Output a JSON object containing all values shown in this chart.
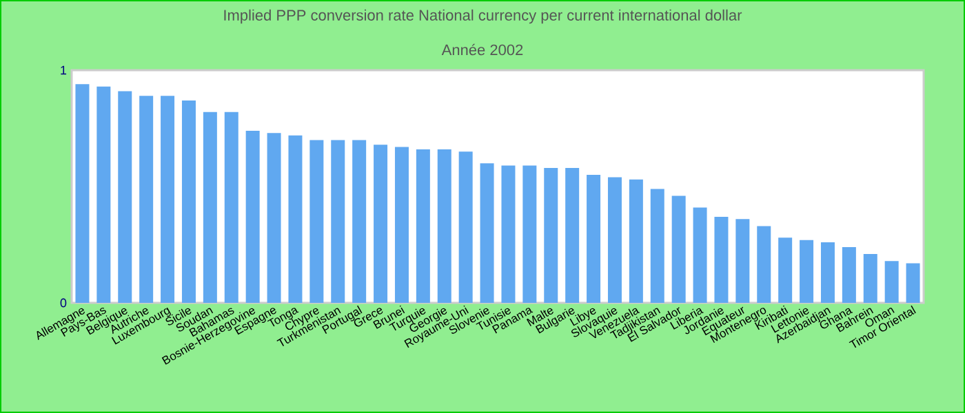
{
  "chart_data": {
    "type": "bar",
    "title": "Implied PPP conversion rate  National currency per current international dollar",
    "subtitle": "Année 2002",
    "categories": [
      "Allemagne",
      "Pays-Bas",
      "Belgique",
      "Autriche",
      "Luxembourg",
      "Sicile",
      "Soudan",
      "Bahamas",
      "Bosnie-Herzegovine",
      "Espagne",
      "Tonga",
      "Chypre",
      "Turkmenistan",
      "Portugal",
      "Grece",
      "Brunei",
      "Turquie",
      "Georgie",
      "Royaume-Uni",
      "Slovenie",
      "Tunisie",
      "Panama",
      "Malte",
      "Bulgarie",
      "Libye",
      "Slovaquie",
      "Venezuela",
      "Tadjikistan",
      "El Salvador",
      "Liberia",
      "Jordanie",
      "Equateur",
      "Montenegro",
      "Kiribati",
      "Lettonie",
      "Azerbaidjan",
      "Ghana",
      "Bahrein",
      "Oman",
      "Timor Oriental"
    ],
    "values": [
      0.94,
      0.93,
      0.91,
      0.89,
      0.89,
      0.87,
      0.82,
      0.82,
      0.74,
      0.73,
      0.72,
      0.7,
      0.7,
      0.7,
      0.68,
      0.67,
      0.66,
      0.66,
      0.65,
      0.6,
      0.59,
      0.59,
      0.58,
      0.58,
      0.55,
      0.54,
      0.53,
      0.49,
      0.46,
      0.41,
      0.37,
      0.36,
      0.33,
      0.28,
      0.27,
      0.26,
      0.24,
      0.21,
      0.18,
      0.17
    ],
    "color": "#60a8f0",
    "ylim": [
      0,
      1
    ],
    "yticks": [
      0,
      1
    ]
  }
}
